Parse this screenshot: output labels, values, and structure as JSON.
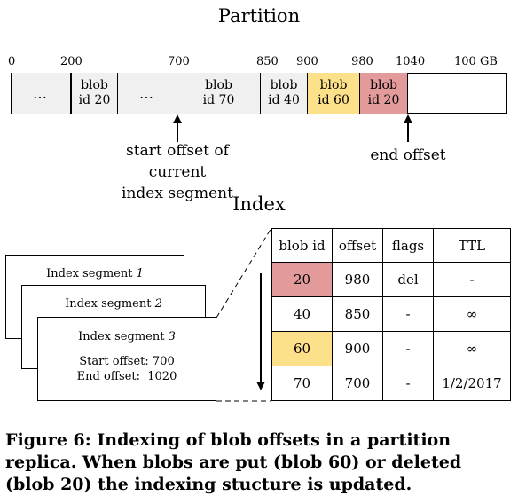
{
  "partition": {
    "title": "Partition",
    "ticks": [
      "0",
      "200",
      "700",
      "850",
      "900",
      "980",
      "1040",
      "100 GB"
    ],
    "segments": [
      {
        "line1": "…",
        "line2": ""
      },
      {
        "line1": "blob",
        "line2": "id 20"
      },
      {
        "line1": "…",
        "line2": ""
      },
      {
        "line1": "blob",
        "line2": "id 70"
      },
      {
        "line1": "blob",
        "line2": "id 40"
      },
      {
        "line1": "blob",
        "line2": "id 60"
      },
      {
        "line1": "blob",
        "line2": "id 20"
      }
    ],
    "start_label_1": "start offset of current",
    "start_label_2": "index segment",
    "end_label": "end offset"
  },
  "index": {
    "title": "Index",
    "segments": {
      "seg1_prefix": "Index segment ",
      "seg1_num": "1",
      "seg2_prefix": "Index segment ",
      "seg2_num": "2",
      "seg3_prefix": "Index segment ",
      "seg3_num": "3",
      "start_offset": "Start offset: 700",
      "end_offset": "End offset:  1020"
    },
    "headers": [
      "blob id",
      "offset",
      "flags",
      "TTL"
    ],
    "rows": [
      [
        "20",
        "980",
        "del",
        "-"
      ],
      [
        "40",
        "850",
        "-",
        "∞"
      ],
      [
        "60",
        "900",
        "-",
        "∞"
      ],
      [
        "70",
        "700",
        "-",
        "1/2/2017"
      ]
    ]
  },
  "colors": {
    "deleted": "#e39a9a",
    "put": "#fde18a",
    "empty": "#f0f0f0"
  },
  "caption": "Figure 6:  Indexing of blob offsets in a partition replica.  When blobs are put (blob 60) or deleted (blob 20) the indexing stucture is updated."
}
